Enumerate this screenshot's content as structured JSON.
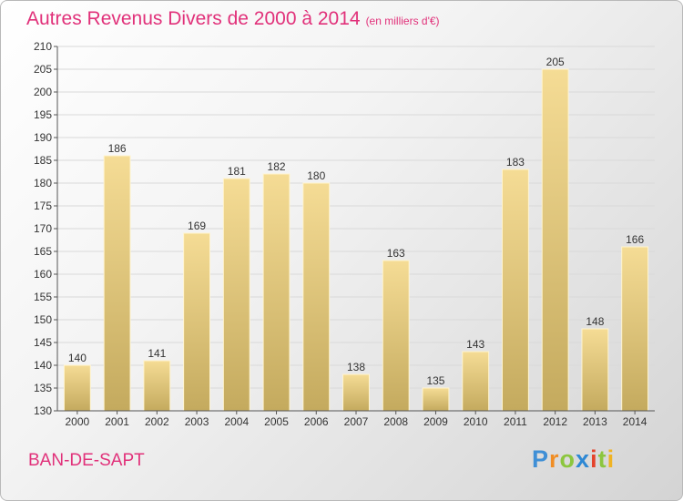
{
  "header": {
    "title": "Autres Revenus Divers de 2000 à 2014",
    "unit": "(en milliers d'€)"
  },
  "footer": {
    "commune": "BAN-DE-SAPT",
    "logo": "Proxiti"
  },
  "chart_data": {
    "type": "bar",
    "title": "Autres Revenus Divers de 2000 à 2014",
    "subtitle": "(en milliers d'€)",
    "categories": [
      "2000",
      "2001",
      "2002",
      "2003",
      "2004",
      "2005",
      "2006",
      "2007",
      "2008",
      "2009",
      "2010",
      "2011",
      "2012",
      "2013",
      "2014"
    ],
    "values": [
      140,
      186,
      141,
      169,
      181,
      182,
      180,
      138,
      163,
      135,
      143,
      183,
      205,
      148,
      166
    ],
    "xlabel": "",
    "ylabel": "",
    "ylim": [
      130,
      210
    ],
    "yticks": [
      130,
      135,
      140,
      145,
      150,
      155,
      160,
      165,
      170,
      175,
      180,
      185,
      190,
      195,
      200,
      205,
      210
    ],
    "grid": true,
    "legend": "none",
    "colors": {
      "bar_light": "#f5dc95",
      "bar_dark": "#c4aa5e",
      "text_accent": "#e1317a"
    }
  }
}
